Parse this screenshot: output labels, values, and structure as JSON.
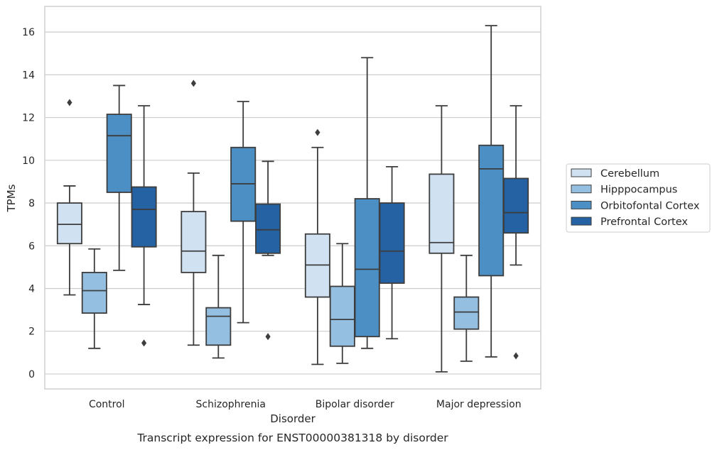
{
  "chart_data": {
    "type": "box",
    "title": "",
    "caption": "Transcript expression for ENST00000381318 by disorder",
    "xlabel": "Disorder",
    "ylabel": "TPMs",
    "ylim": [
      -0.7,
      17.2
    ],
    "yticks": [
      0,
      2,
      4,
      6,
      8,
      10,
      12,
      14,
      16
    ],
    "grid": "horizontal",
    "legend_position": "right",
    "categories": [
      "Control",
      "Schizophrenia",
      "Bipolar disorder",
      "Major depression"
    ],
    "series": [
      {
        "name": "Cerebellum",
        "color": "#d0e1f2",
        "boxes": [
          {
            "whislo": 3.7,
            "q1": 6.1,
            "med": 7.0,
            "q3": 8.0,
            "whishi": 8.8,
            "fliers": [
              12.7
            ]
          },
          {
            "whislo": 1.35,
            "q1": 4.75,
            "med": 5.75,
            "q3": 7.6,
            "whishi": 9.4,
            "fliers": [
              13.6
            ]
          },
          {
            "whislo": 0.45,
            "q1": 3.6,
            "med": 5.1,
            "q3": 6.55,
            "whishi": 10.6,
            "fliers": [
              11.3
            ]
          },
          {
            "whislo": 0.1,
            "q1": 5.65,
            "med": 6.15,
            "q3": 9.35,
            "whishi": 12.55,
            "fliers": []
          }
        ]
      },
      {
        "name": "Hipppocampus",
        "color": "#95bfe0",
        "boxes": [
          {
            "whislo": 1.2,
            "q1": 2.85,
            "med": 3.9,
            "q3": 4.75,
            "whishi": 5.85,
            "fliers": []
          },
          {
            "whislo": 0.75,
            "q1": 1.35,
            "med": 2.7,
            "q3": 3.1,
            "whishi": 5.55,
            "fliers": []
          },
          {
            "whislo": 0.5,
            "q1": 1.3,
            "med": 2.55,
            "q3": 4.1,
            "whishi": 6.1,
            "fliers": []
          },
          {
            "whislo": 0.6,
            "q1": 2.1,
            "med": 2.9,
            "q3": 3.6,
            "whishi": 5.55,
            "fliers": []
          }
        ]
      },
      {
        "name": "Orbitofontal Cortex",
        "color": "#4b8fc4",
        "boxes": [
          {
            "whislo": 4.85,
            "q1": 8.5,
            "med": 11.15,
            "q3": 12.15,
            "whishi": 13.5,
            "fliers": []
          },
          {
            "whislo": 2.4,
            "q1": 7.15,
            "med": 8.9,
            "q3": 10.6,
            "whishi": 12.75,
            "fliers": []
          },
          {
            "whislo": 1.2,
            "q1": 1.75,
            "med": 4.9,
            "q3": 8.2,
            "whishi": 14.8,
            "fliers": []
          },
          {
            "whislo": 0.8,
            "q1": 4.6,
            "med": 9.6,
            "q3": 10.7,
            "whishi": 16.3,
            "fliers": []
          }
        ]
      },
      {
        "name": "Prefrontal Cortex",
        "color": "#2462a4",
        "boxes": [
          {
            "whislo": 3.25,
            "q1": 5.95,
            "med": 7.7,
            "q3": 8.75,
            "whishi": 12.55,
            "fliers": [
              1.45
            ]
          },
          {
            "whislo": 5.55,
            "q1": 5.65,
            "med": 6.75,
            "q3": 7.95,
            "whishi": 9.95,
            "fliers": [
              1.75
            ]
          },
          {
            "whislo": 1.65,
            "q1": 4.25,
            "med": 5.75,
            "q3": 8.0,
            "whishi": 9.7,
            "fliers": []
          },
          {
            "whislo": 5.1,
            "q1": 6.6,
            "med": 7.55,
            "q3": 9.15,
            "whishi": 12.55,
            "fliers": [
              0.85
            ]
          }
        ]
      }
    ]
  }
}
